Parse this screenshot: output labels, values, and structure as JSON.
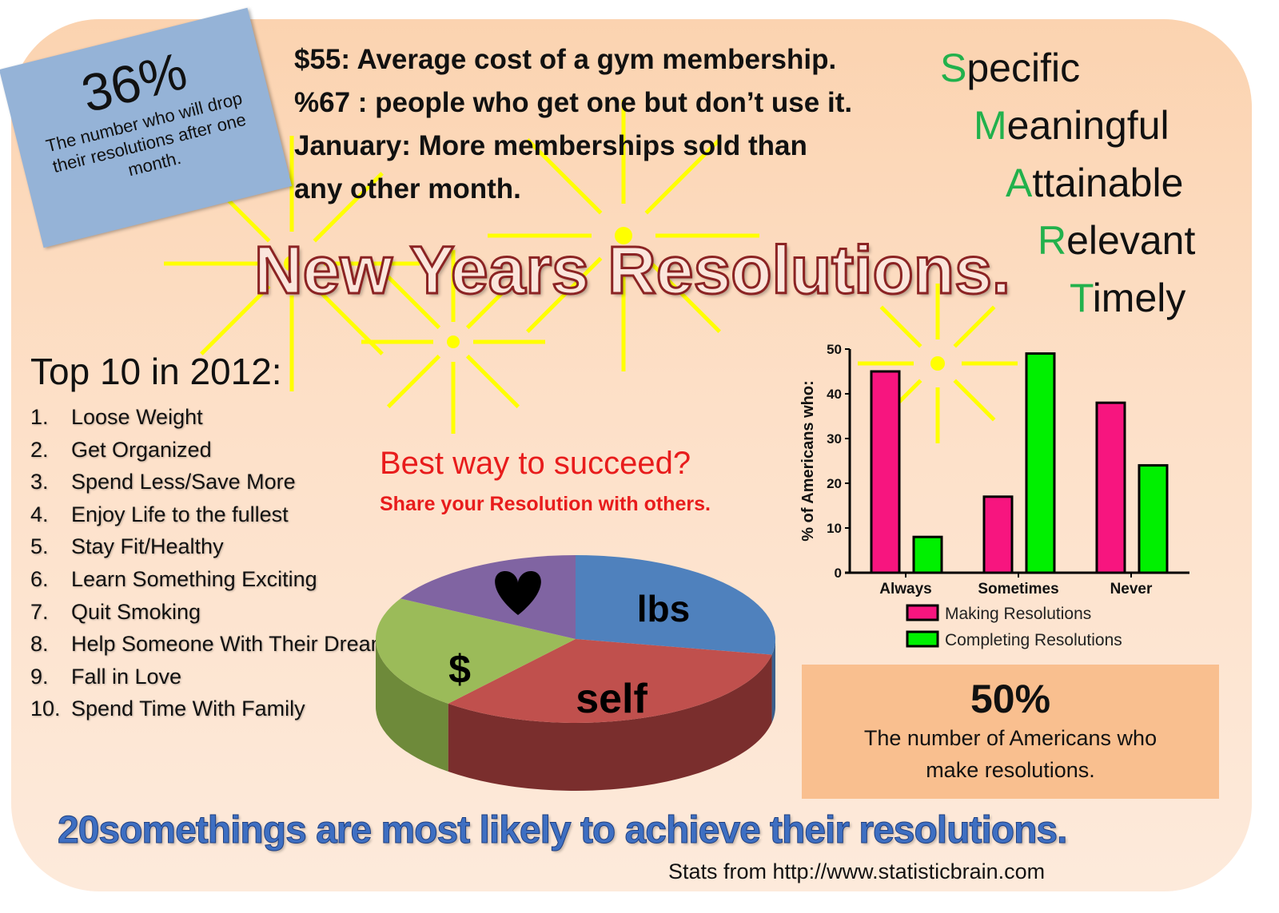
{
  "stat36": {
    "value": "36%",
    "caption": "The number who will drop their resolutions after one month."
  },
  "facts": [
    "$55: Average cost of a gym membership.",
    "%67 : people who get one but don’t use it.",
    "January: More memberships sold than",
    "any other month."
  ],
  "smart": [
    {
      "letter": "S",
      "rest": "pecific"
    },
    {
      "letter": "M",
      "rest": "eaningful"
    },
    {
      "letter": "A",
      "rest": "ttainable"
    },
    {
      "letter": "R",
      "rest": "elevant"
    },
    {
      "letter": "T",
      "rest": "imely"
    }
  ],
  "title": "New Years Resolutions.",
  "top10": {
    "heading": "Top 10 in 2012:",
    "items": [
      {
        "n": "1.",
        "text": "Loose Weight"
      },
      {
        "n": "2.",
        "text": "Get Organized"
      },
      {
        "n": "3.",
        "text": "Spend Less/Save More"
      },
      {
        "n": "4.",
        "text": "Enjoy Life to the fullest"
      },
      {
        "n": "5.",
        "text": "Stay Fit/Healthy"
      },
      {
        "n": "6.",
        "text": "Learn Something Exciting"
      },
      {
        "n": "7.",
        "text": "Quit Smoking"
      },
      {
        "n": "8.",
        "text": "Help Someone With Their Dreams"
      },
      {
        "n": "9.",
        "text": "Fall in Love"
      },
      {
        "n": "10.",
        "text": "Spend Time With Family"
      }
    ]
  },
  "best_way": {
    "question": "Best way to succeed?",
    "answer": "Share your Resolution with others."
  },
  "stat50": {
    "value": "50%",
    "caption_line1": "The number of Americans who",
    "caption_line2": "make resolutions."
  },
  "bottom_line": "20somethings are most likely to achieve their resolutions.",
  "source": "Stats from http://www.statisticbrain.com",
  "chart_data": [
    {
      "type": "bar",
      "categories": [
        "Always",
        "Sometimes",
        "Never"
      ],
      "series": [
        {
          "name": "Making Resolutions",
          "values": [
            45,
            17,
            38
          ],
          "color": "#f7157f"
        },
        {
          "name": "Completing Resolutions",
          "values": [
            8,
            49,
            24
          ],
          "color": "#00f000"
        }
      ],
      "ylabel": "% of Americans who:",
      "ylim": [
        0,
        50
      ],
      "yticks": [
        0,
        10,
        20,
        30,
        40,
        50
      ],
      "grid": false,
      "legend": "bottom"
    },
    {
      "type": "pie",
      "style": "3d",
      "slices": [
        {
          "label": "lbs",
          "share": 0.28,
          "color": "#4f81bd"
        },
        {
          "label": "self",
          "share": 0.33,
          "color": "#c0504d"
        },
        {
          "label": "$",
          "share": 0.22,
          "color": "#9bbb59"
        },
        {
          "label": "heart",
          "icon": "heart-icon",
          "share": 0.17,
          "color": "#8064a2"
        }
      ]
    }
  ]
}
